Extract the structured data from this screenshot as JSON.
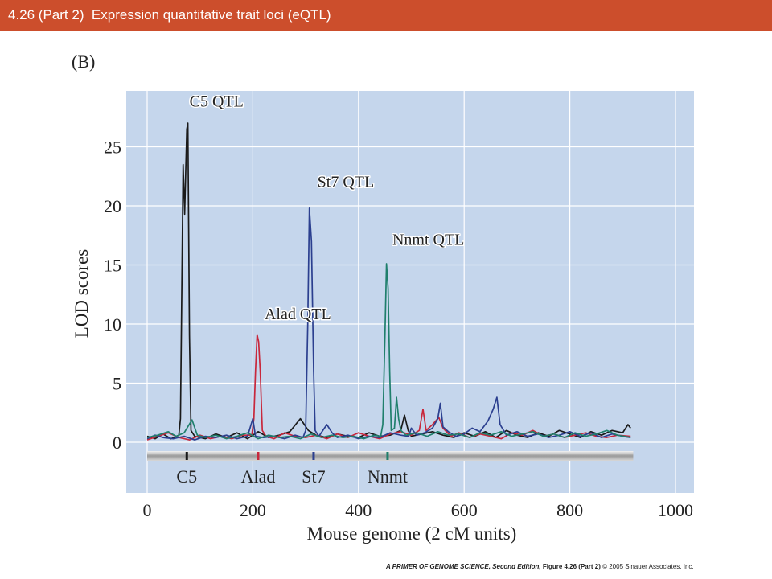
{
  "header": {
    "title": "4.26 (Part 2)  Expression quantitative trait loci (eQTL)",
    "panel": "(B)"
  },
  "colors": {
    "title_bar": "#cc4e2c",
    "plot_bg": "#c5d6ec",
    "black": "#1a1a1a",
    "red": "#c8283c",
    "blue": "#2b3f8f",
    "green": "#1f7f6c"
  },
  "chart_data": {
    "type": "line",
    "xlabel": "Mouse genome (2 cM units)",
    "ylabel": "LOD scores",
    "xlim": [
      0,
      1000
    ],
    "ylim": [
      -4.5,
      30
    ],
    "x_ticks": [
      "0",
      "200",
      "400",
      "600",
      "800",
      "1000"
    ],
    "y_ticks": [
      "0",
      "5",
      "10",
      "15",
      "20",
      "25"
    ],
    "grid": true,
    "series": [
      {
        "color_key": "black",
        "points": [
          [
            0,
            0.5
          ],
          [
            15,
            0.3
          ],
          [
            30,
            0.7
          ],
          [
            45,
            0.3
          ],
          [
            60,
            0.6
          ],
          [
            63,
            2
          ],
          [
            68,
            23.5
          ],
          [
            71,
            19.3
          ],
          [
            75,
            26.5
          ],
          [
            77,
            27
          ],
          [
            80,
            9
          ],
          [
            83,
            1
          ],
          [
            90,
            0.5
          ],
          [
            110,
            0.3
          ],
          [
            130,
            0.7
          ],
          [
            150,
            0.4
          ],
          [
            170,
            0.8
          ],
          [
            190,
            0.3
          ],
          [
            210,
            0.9
          ],
          [
            230,
            0.4
          ],
          [
            250,
            0.6
          ],
          [
            270,
            0.9
          ],
          [
            290,
            2
          ],
          [
            305,
            1
          ],
          [
            320,
            0.6
          ],
          [
            340,
            0.4
          ],
          [
            360,
            0.7
          ],
          [
            380,
            0.5
          ],
          [
            400,
            0.4
          ],
          [
            420,
            0.8
          ],
          [
            440,
            0.5
          ],
          [
            460,
            0.6
          ],
          [
            480,
            1
          ],
          [
            487,
            2.3
          ],
          [
            494,
            1
          ],
          [
            500,
            0.5
          ],
          [
            520,
            0.7
          ],
          [
            540,
            0.9
          ],
          [
            560,
            0.6
          ],
          [
            580,
            0.4
          ],
          [
            600,
            0.8
          ],
          [
            620,
            0.5
          ],
          [
            640,
            0.9
          ],
          [
            660,
            0.4
          ],
          [
            680,
            1
          ],
          [
            700,
            0.6
          ],
          [
            720,
            0.4
          ],
          [
            740,
            0.8
          ],
          [
            760,
            0.5
          ],
          [
            780,
            1
          ],
          [
            800,
            0.7
          ],
          [
            820,
            0.4
          ],
          [
            840,
            0.9
          ],
          [
            860,
            0.6
          ],
          [
            880,
            1
          ],
          [
            900,
            0.8
          ],
          [
            910,
            1.5
          ],
          [
            915,
            1.2
          ]
        ]
      },
      {
        "color_key": "red",
        "points": [
          [
            0,
            0.2
          ],
          [
            20,
            0.5
          ],
          [
            40,
            0.8
          ],
          [
            60,
            0.4
          ],
          [
            80,
            0.2
          ],
          [
            100,
            0.6
          ],
          [
            120,
            0.3
          ],
          [
            140,
            0.5
          ],
          [
            160,
            0.3
          ],
          [
            180,
            0.6
          ],
          [
            198,
            0.6
          ],
          [
            202,
            2
          ],
          [
            205,
            6
          ],
          [
            208,
            9.1
          ],
          [
            211,
            8.5
          ],
          [
            214,
            6
          ],
          [
            218,
            1
          ],
          [
            225,
            0.5
          ],
          [
            240,
            0.3
          ],
          [
            260,
            0.8
          ],
          [
            280,
            0.5
          ],
          [
            300,
            0.4
          ],
          [
            320,
            0.6
          ],
          [
            340,
            0.3
          ],
          [
            360,
            0.7
          ],
          [
            380,
            0.4
          ],
          [
            400,
            0.8
          ],
          [
            420,
            0.5
          ],
          [
            440,
            0.3
          ],
          [
            460,
            0.7
          ],
          [
            480,
            0.9
          ],
          [
            500,
            0.6
          ],
          [
            515,
            1
          ],
          [
            522,
            2.8
          ],
          [
            528,
            1
          ],
          [
            540,
            1.5
          ],
          [
            552,
            2.1
          ],
          [
            560,
            1.2
          ],
          [
            575,
            0.5
          ],
          [
            590,
            0.8
          ],
          [
            610,
            0.4
          ],
          [
            630,
            0.7
          ],
          [
            650,
            0.5
          ],
          [
            670,
            0.3
          ],
          [
            690,
            0.8
          ],
          [
            710,
            0.6
          ],
          [
            730,
            1
          ],
          [
            750,
            0.5
          ],
          [
            770,
            0.7
          ],
          [
            790,
            0.4
          ],
          [
            810,
            0.6
          ],
          [
            830,
            0.8
          ],
          [
            850,
            0.5
          ],
          [
            870,
            0.4
          ],
          [
            890,
            0.6
          ],
          [
            915,
            0.5
          ]
        ]
      },
      {
        "color_key": "blue",
        "points": [
          [
            0,
            0.3
          ],
          [
            15,
            0.6
          ],
          [
            30,
            0.4
          ],
          [
            50,
            0.3
          ],
          [
            70,
            0.5
          ],
          [
            90,
            0.2
          ],
          [
            110,
            0.5
          ],
          [
            130,
            0.4
          ],
          [
            150,
            0.6
          ],
          [
            170,
            0.3
          ],
          [
            190,
            0.5
          ],
          [
            200,
            2
          ],
          [
            205,
            0.5
          ],
          [
            220,
            0.4
          ],
          [
            240,
            0.5
          ],
          [
            260,
            0.3
          ],
          [
            280,
            0.6
          ],
          [
            295,
            0.4
          ],
          [
            300,
            1
          ],
          [
            304,
            10
          ],
          [
            307,
            19.8
          ],
          [
            311,
            17
          ],
          [
            315,
            6
          ],
          [
            318,
            1
          ],
          [
            325,
            0.5
          ],
          [
            340,
            1.5
          ],
          [
            350,
            0.8
          ],
          [
            360,
            0.4
          ],
          [
            380,
            0.6
          ],
          [
            400,
            0.3
          ],
          [
            420,
            0.5
          ],
          [
            440,
            0.4
          ],
          [
            460,
            0.8
          ],
          [
            480,
            0.6
          ],
          [
            495,
            0.5
          ],
          [
            500,
            1.2
          ],
          [
            510,
            0.6
          ],
          [
            525,
            0.8
          ],
          [
            540,
            1.2
          ],
          [
            550,
            2
          ],
          [
            555,
            3.3
          ],
          [
            560,
            1.3
          ],
          [
            570,
            0.9
          ],
          [
            585,
            0.5
          ],
          [
            600,
            0.7
          ],
          [
            615,
            1.2
          ],
          [
            630,
            0.9
          ],
          [
            645,
            1.8
          ],
          [
            655,
            2.8
          ],
          [
            662,
            3.8
          ],
          [
            668,
            1.5
          ],
          [
            680,
            0.6
          ],
          [
            700,
            0.9
          ],
          [
            720,
            0.5
          ],
          [
            740,
            0.7
          ],
          [
            760,
            0.4
          ],
          [
            780,
            0.6
          ],
          [
            800,
            0.9
          ],
          [
            820,
            0.5
          ],
          [
            840,
            0.8
          ],
          [
            860,
            0.4
          ],
          [
            880,
            0.7
          ],
          [
            900,
            0.5
          ],
          [
            915,
            0.4
          ]
        ]
      },
      {
        "color_key": "green",
        "points": [
          [
            0,
            0.4
          ],
          [
            20,
            0.6
          ],
          [
            40,
            0.9
          ],
          [
            55,
            0.5
          ],
          [
            70,
            0.8
          ],
          [
            85,
            1.9
          ],
          [
            95,
            0.6
          ],
          [
            110,
            0.4
          ],
          [
            130,
            0.6
          ],
          [
            150,
            0.3
          ],
          [
            170,
            0.5
          ],
          [
            190,
            0.8
          ],
          [
            210,
            0.3
          ],
          [
            230,
            0.6
          ],
          [
            250,
            0.4
          ],
          [
            270,
            0.5
          ],
          [
            290,
            0.3
          ],
          [
            310,
            0.7
          ],
          [
            330,
            0.4
          ],
          [
            350,
            0.6
          ],
          [
            370,
            0.4
          ],
          [
            390,
            0.5
          ],
          [
            410,
            0.3
          ],
          [
            430,
            0.6
          ],
          [
            442,
            0.5
          ],
          [
            446,
            1.5
          ],
          [
            450,
            9
          ],
          [
            453,
            15.1
          ],
          [
            456,
            13
          ],
          [
            459,
            6
          ],
          [
            462,
            1
          ],
          [
            468,
            1.2
          ],
          [
            472,
            3.8
          ],
          [
            476,
            2
          ],
          [
            480,
            1
          ],
          [
            490,
            0.6
          ],
          [
            510,
            0.8
          ],
          [
            530,
            0.5
          ],
          [
            550,
            0.9
          ],
          [
            570,
            0.6
          ],
          [
            590,
            0.7
          ],
          [
            610,
            0.4
          ],
          [
            630,
            0.8
          ],
          [
            650,
            0.6
          ],
          [
            670,
            0.9
          ],
          [
            690,
            0.5
          ],
          [
            710,
            0.7
          ],
          [
            730,
            0.9
          ],
          [
            750,
            0.5
          ],
          [
            770,
            0.7
          ],
          [
            790,
            0.4
          ],
          [
            810,
            0.8
          ],
          [
            830,
            0.5
          ],
          [
            850,
            0.7
          ],
          [
            870,
            1
          ],
          [
            890,
            0.6
          ],
          [
            915,
            0.4
          ]
        ]
      }
    ],
    "annotations": [
      {
        "label": "C5 QTL",
        "x": 68,
        "y": 28.4
      },
      {
        "label": "St7 QTL",
        "x": 310,
        "y": 21.6
      },
      {
        "label": "Nnmt QTL",
        "x": 452,
        "y": 16.7
      },
      {
        "label": "Alad QTL",
        "x": 210,
        "y": 10.4
      }
    ],
    "genes": [
      {
        "label": "C5",
        "x": 75,
        "color_key": "black"
      },
      {
        "label": "Alad",
        "x": 210,
        "color_key": "red"
      },
      {
        "label": "St7",
        "x": 315,
        "color_key": "blue"
      },
      {
        "label": "Nnmt",
        "x": 455,
        "color_key": "green"
      }
    ]
  },
  "footer": {
    "book": "A PRIMER OF GENOME SCIENCE, Second Edition,",
    "figure": "Figure 4.26 (Part 2)",
    "copyright": "© 2005 Sinauer Associates, Inc."
  }
}
